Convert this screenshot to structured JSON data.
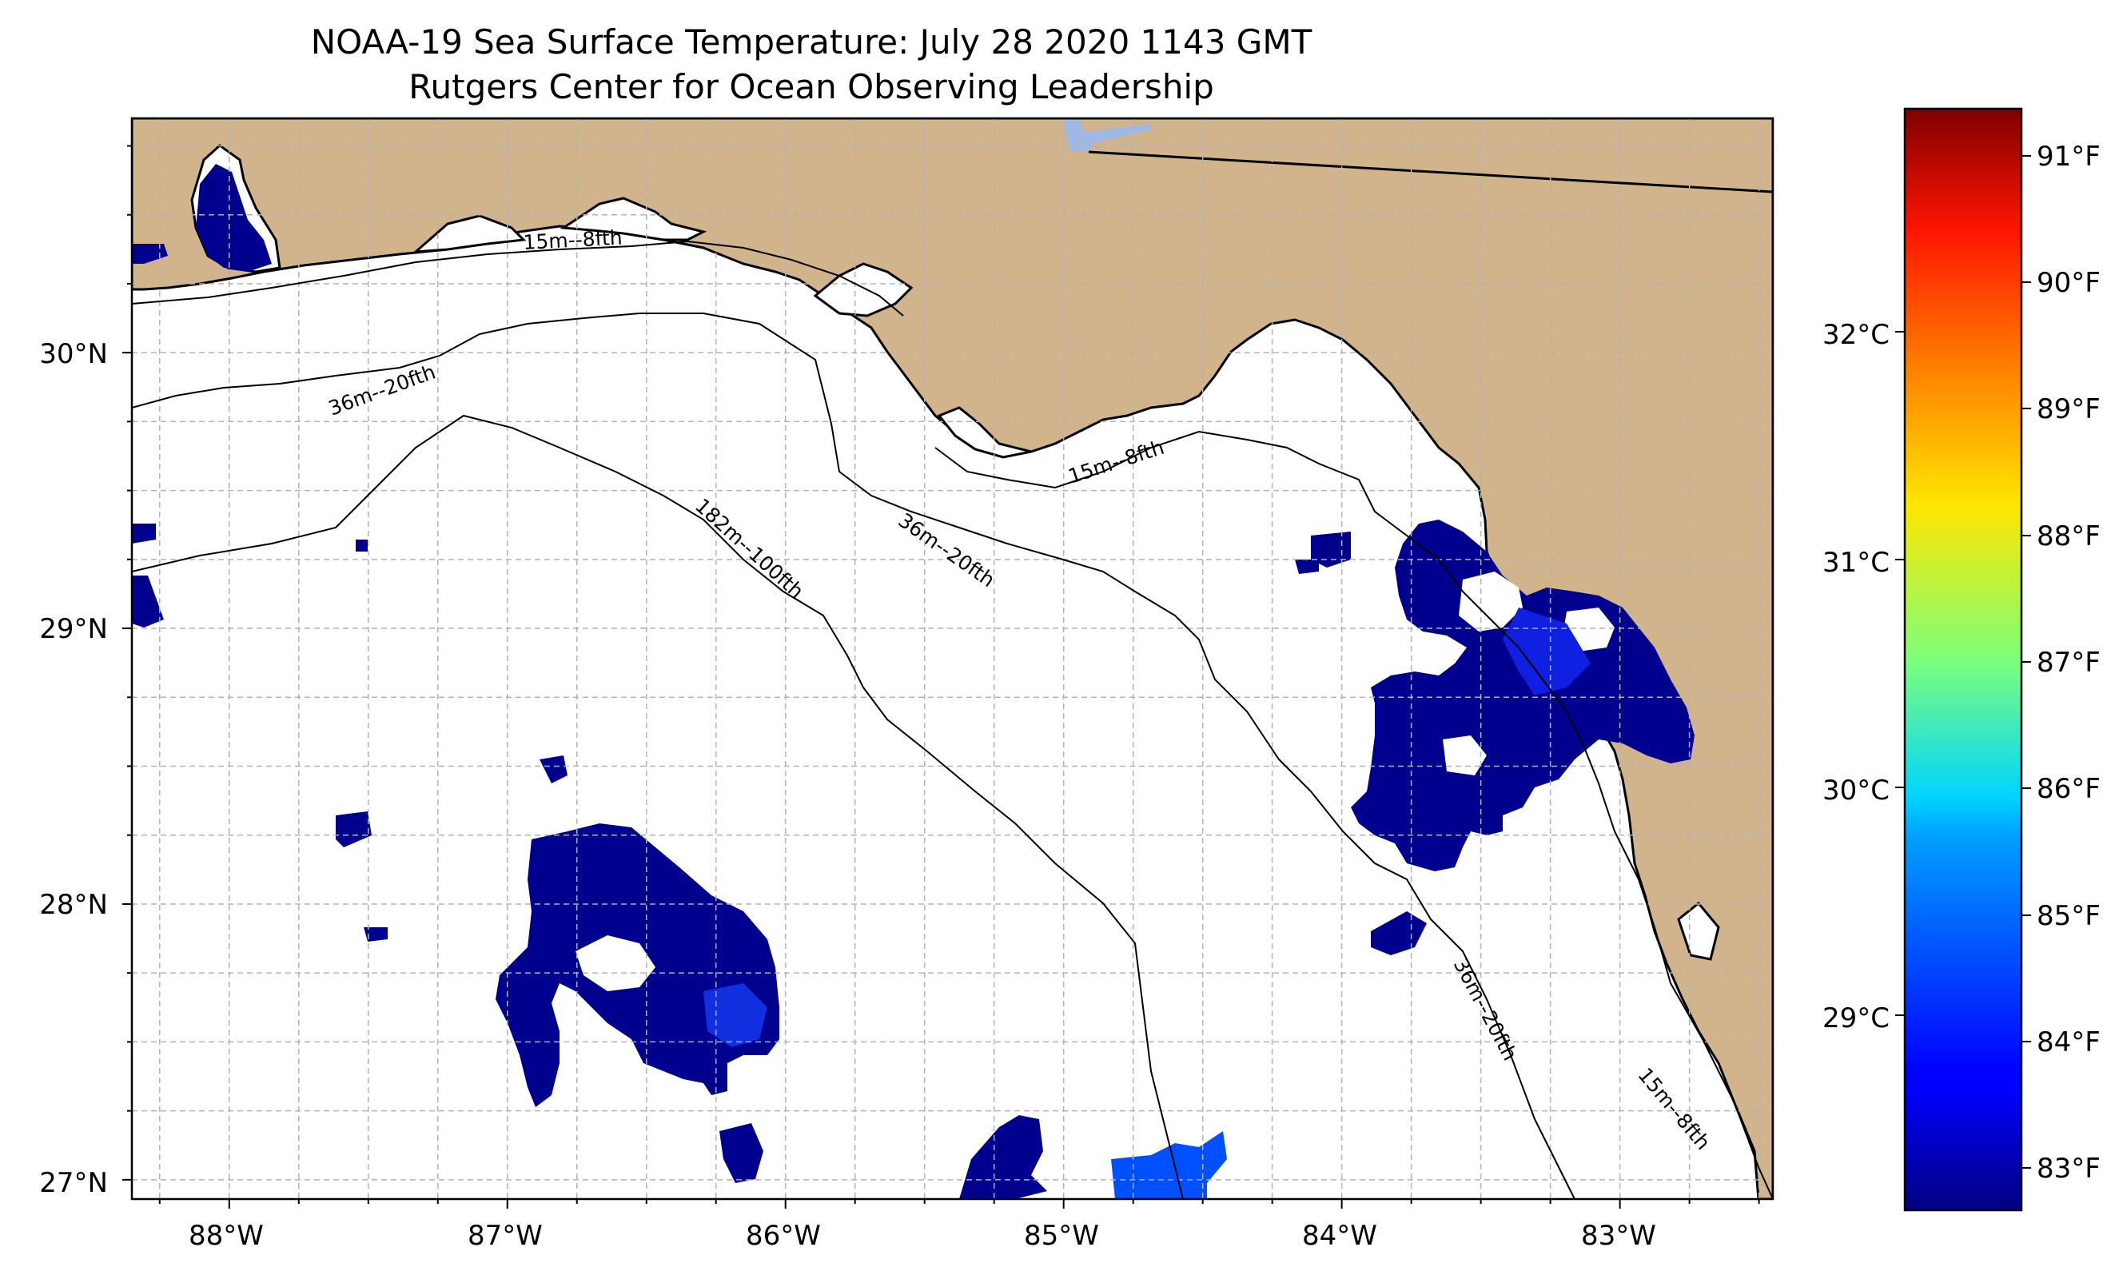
{
  "title": "NOAA-19 Sea Surface Temperature: July 28 2020 1143 GMT",
  "subtitle": "Rutgers Center for Ocean Observing Leadership",
  "map": {
    "lon_range": [
      -88.35,
      -82.45
    ],
    "lat_range": [
      26.93,
      30.85
    ],
    "lon_ticks": [
      "88°W",
      "87°W",
      "86°W",
      "85°W",
      "84°W",
      "83°W"
    ],
    "lat_ticks": [
      "30°N",
      "29°N",
      "28°N",
      "27°N"
    ],
    "grid": "dashed, every 0.25°",
    "land_color": "#D2B48C",
    "lake_color": "#9FB9E4",
    "ocean_color": "#FFFFFF",
    "isobath_labels": [
      "15m--8fth",
      "36m--20fth",
      "15m--8fth",
      "36m--20fth",
      "182m--100fth",
      "36m--20fth",
      "15m--8fth"
    ]
  },
  "colorbar": {
    "colormap": "jet",
    "celsius_ticks": [
      "32°C",
      "31°C",
      "30°C",
      "29°C"
    ],
    "fahrenheit_ticks": [
      "91°F",
      "90°F",
      "89°F",
      "88°F",
      "87°F",
      "86°F",
      "85°F",
      "84°F",
      "83°F"
    ]
  }
}
